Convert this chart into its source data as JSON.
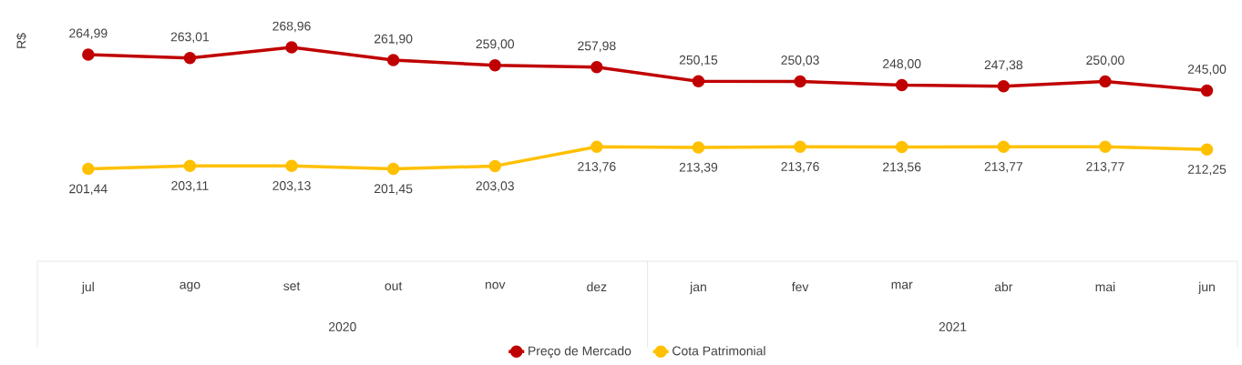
{
  "chart_data": {
    "type": "line",
    "ylabel": "R$",
    "categories": [
      "jul",
      "ago",
      "set",
      "out",
      "nov",
      "dez",
      "jan",
      "fev",
      "mar",
      "abr",
      "mai",
      "jun"
    ],
    "series": [
      {
        "name": "Preço de Mercado",
        "color": "#c00000",
        "values": [
          264.99,
          263.01,
          268.96,
          261.9,
          259.0,
          257.98,
          250.15,
          250.03,
          248.0,
          247.38,
          250.0,
          245.0
        ],
        "value_labels": [
          "264,99",
          "263,01",
          "268,96",
          "261,90",
          "259,00",
          "257,98",
          "250,15",
          "250,03",
          "248,00",
          "247,38",
          "250,00",
          "245,00"
        ]
      },
      {
        "name": "Cota Patrimonial",
        "color": "#ffc000",
        "values": [
          201.44,
          203.11,
          203.13,
          201.45,
          203.03,
          213.76,
          213.39,
          213.76,
          213.56,
          213.77,
          213.77,
          212.25
        ],
        "value_labels": [
          "201,44",
          "203,11",
          "203,13",
          "201,45",
          "203,03",
          "213,76",
          "213,39",
          "213,76",
          "213,56",
          "213,77",
          "213,77",
          "212,25"
        ]
      }
    ],
    "marker": "circle",
    "line_style": "solid",
    "legend": "bottom",
    "annotations": [
      "2020",
      "2021"
    ]
  }
}
